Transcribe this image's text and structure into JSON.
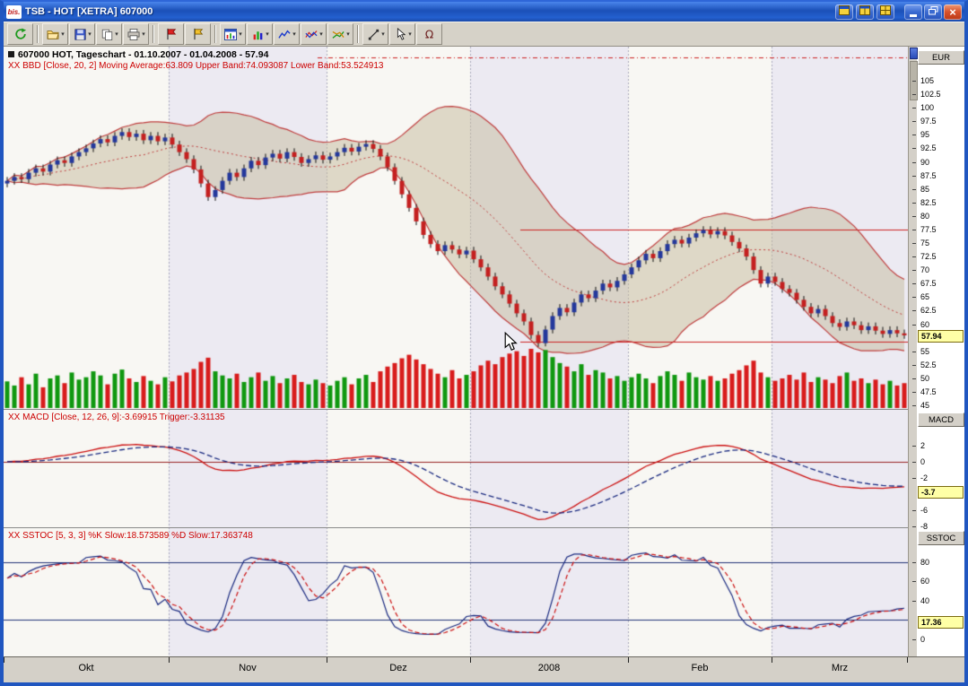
{
  "window": {
    "title": "TSB - HOT [XETRA] 607000",
    "app_icon_text": "bis."
  },
  "toolbar": {
    "items": [
      {
        "name": "refresh",
        "dropdown": false
      },
      {
        "separator": true
      },
      {
        "name": "open",
        "dropdown": true
      },
      {
        "name": "save",
        "dropdown": true
      },
      {
        "name": "copy",
        "dropdown": true
      },
      {
        "name": "print",
        "dropdown": true
      },
      {
        "separator": true
      },
      {
        "name": "flag-red",
        "dropdown": false
      },
      {
        "name": "flag-yellow",
        "dropdown": false
      },
      {
        "separator": true
      },
      {
        "name": "chart-window",
        "dropdown": true
      },
      {
        "name": "indicators",
        "dropdown": true
      },
      {
        "name": "chart-type",
        "dropdown": true
      },
      {
        "name": "overlay",
        "dropdown": true
      },
      {
        "name": "compare",
        "dropdown": true
      },
      {
        "separator": true
      },
      {
        "name": "draw-line",
        "dropdown": true
      },
      {
        "name": "pointer",
        "dropdown": true
      },
      {
        "name": "omega",
        "dropdown": false
      }
    ]
  },
  "chart": {
    "title_line": "607000  HOT, Tageschart - 01.10.2007 - 01.04.2008 - 57.94",
    "bbd_line": "XX BBD [Close, 20, 2] Moving Average:63.809 Upper Band:74.093087 Lower Band:53.524913",
    "macd_line": "XX MACD [Close, 12, 26, 9]:-3.69915 Trigger:-3.31135",
    "sstoc_line": "XX SSTOC [5, 3, 3] %K Slow:18.573589 %D Slow:17.363748",
    "axis": {
      "price_unit": "EUR",
      "price_ticks": [
        105,
        102.5,
        100,
        97.5,
        95,
        92.5,
        90,
        87.5,
        85,
        82.5,
        80,
        77.5,
        75,
        72.5,
        70,
        67.5,
        65,
        62.5,
        60,
        55,
        52.5,
        50,
        47.5,
        45
      ],
      "price_badge": "57.94",
      "macd_unit": "MACD",
      "macd_ticks": [
        2,
        0,
        -2,
        -6,
        -8
      ],
      "macd_badge": "-3.7",
      "stoch_unit": "SSTOC",
      "stoch_ticks": [
        80,
        60,
        40,
        0
      ],
      "stoch_badge": "17.36"
    },
    "months": {
      "labels": [
        "Okt",
        "Nov",
        "Dez",
        "2008",
        "Feb",
        "Mrz"
      ],
      "boundaries": [
        0,
        23,
        45,
        65,
        87,
        107,
        126
      ]
    }
  },
  "colors": {
    "indicator_text": "#cc0000",
    "candle_up": "#24389c",
    "candle_down": "#c42020",
    "band_fill": "rgba(196,186,156,0.5)",
    "band_line": "#c04040",
    "volume_up": "#109810",
    "volume_down": "#d81c1c",
    "macd_line": "#cc1111",
    "trigger_line": "#1a2a80",
    "stoch_k": "#1a2a80",
    "stoch_d": "#cc1111",
    "badge_bg": "#ffffa6",
    "stripe_a": "#f8f7f3",
    "stripe_b": "#eceaf2"
  },
  "chart_data": [
    {
      "type": "candlestick",
      "name": "price",
      "title": "607000 HOT Tageschart 01.10.2007 - 01.04.2008",
      "unit": "EUR",
      "ylim": [
        45,
        105
      ],
      "last": 57.94,
      "indicator": "BBD [Close, 20, 2]",
      "moving_average": 63.809,
      "upper_band": 74.093087,
      "lower_band": 53.524913,
      "hlines": [
        {
          "value": 77.5,
          "from_index": 72
        },
        {
          "value": 56.8,
          "from_index": 72
        }
      ],
      "candles": [
        [
          86.0,
          87.2,
          85.3,
          86.5
        ],
        [
          86.5,
          87.9,
          85.8,
          87.2
        ],
        [
          87.2,
          87.9,
          86.1,
          86.8
        ],
        [
          86.8,
          88.7,
          86.1,
          88.0
        ],
        [
          88.0,
          89.5,
          87.3,
          88.8
        ],
        [
          88.8,
          89.5,
          87.5,
          88.2
        ],
        [
          88.2,
          90.2,
          87.5,
          89.5
        ],
        [
          89.5,
          91.0,
          88.8,
          90.3
        ],
        [
          90.3,
          91.0,
          89.1,
          89.8
        ],
        [
          89.8,
          91.7,
          89.1,
          91.0
        ],
        [
          91.0,
          92.5,
          90.3,
          91.8
        ],
        [
          91.8,
          93.2,
          91.1,
          92.5
        ],
        [
          92.5,
          94.1,
          91.8,
          93.4
        ],
        [
          93.4,
          94.9,
          92.7,
          94.2
        ],
        [
          94.2,
          94.9,
          92.9,
          93.6
        ],
        [
          93.6,
          95.5,
          92.9,
          94.8
        ],
        [
          94.8,
          96.2,
          94.1,
          95.5
        ],
        [
          95.5,
          96.2,
          93.9,
          94.6
        ],
        [
          94.6,
          95.9,
          93.9,
          95.2
        ],
        [
          95.2,
          95.9,
          93.3,
          94.0
        ],
        [
          94.0,
          95.5,
          93.3,
          94.8
        ],
        [
          94.8,
          95.5,
          93.1,
          93.8
        ],
        [
          93.8,
          95.2,
          93.1,
          94.5
        ],
        [
          94.5,
          95.2,
          92.5,
          93.2
        ],
        [
          93.2,
          93.9,
          91.1,
          91.8
        ],
        [
          91.8,
          92.5,
          89.8,
          90.5
        ],
        [
          90.5,
          91.2,
          87.9,
          88.6
        ],
        [
          88.6,
          89.3,
          85.3,
          86.0
        ],
        [
          86.0,
          86.7,
          82.8,
          83.5
        ],
        [
          83.5,
          85.5,
          82.8,
          84.8
        ],
        [
          84.8,
          87.2,
          84.1,
          86.5
        ],
        [
          86.5,
          88.7,
          85.8,
          88.0
        ],
        [
          88.0,
          88.7,
          86.5,
          87.2
        ],
        [
          87.2,
          89.5,
          86.5,
          88.8
        ],
        [
          88.8,
          90.9,
          88.1,
          90.2
        ],
        [
          90.2,
          90.9,
          88.7,
          89.4
        ],
        [
          89.4,
          91.5,
          88.7,
          90.8
        ],
        [
          90.8,
          92.2,
          90.1,
          91.5
        ],
        [
          91.5,
          92.2,
          89.9,
          90.6
        ],
        [
          90.6,
          92.5,
          89.9,
          91.8
        ],
        [
          91.8,
          92.5,
          90.2,
          90.9
        ],
        [
          90.9,
          91.6,
          89.1,
          89.8
        ],
        [
          89.8,
          91.2,
          89.1,
          90.5
        ],
        [
          90.5,
          91.9,
          89.8,
          91.2
        ],
        [
          91.2,
          91.9,
          89.7,
          90.4
        ],
        [
          90.4,
          91.7,
          89.7,
          91.0
        ],
        [
          91.0,
          92.5,
          90.3,
          91.8
        ],
        [
          91.8,
          93.3,
          91.1,
          92.6
        ],
        [
          92.6,
          93.3,
          91.2,
          91.9
        ],
        [
          91.9,
          93.5,
          91.2,
          92.8
        ],
        [
          92.8,
          94.0,
          92.1,
          93.3
        ],
        [
          93.3,
          94.0,
          91.7,
          92.4
        ],
        [
          92.4,
          93.1,
          90.3,
          91.0
        ],
        [
          91.0,
          91.7,
          88.3,
          89.0
        ],
        [
          89.0,
          89.7,
          85.8,
          86.5
        ],
        [
          86.5,
          87.2,
          83.3,
          84.0
        ],
        [
          84.0,
          84.7,
          80.8,
          81.5
        ],
        [
          81.5,
          82.2,
          78.3,
          79.0
        ],
        [
          79.0,
          79.7,
          75.8,
          76.5
        ],
        [
          76.5,
          77.2,
          74.1,
          74.8
        ],
        [
          74.8,
          75.5,
          72.8,
          73.5
        ],
        [
          73.5,
          75.3,
          72.8,
          74.6
        ],
        [
          74.6,
          75.3,
          73.1,
          73.8
        ],
        [
          73.8,
          74.5,
          72.2,
          72.9
        ],
        [
          72.9,
          74.3,
          72.2,
          73.6
        ],
        [
          73.6,
          74.3,
          71.3,
          72.0
        ],
        [
          72.0,
          72.7,
          69.8,
          70.5
        ],
        [
          70.5,
          71.2,
          68.1,
          68.8
        ],
        [
          68.8,
          69.5,
          66.3,
          67.0
        ],
        [
          67.0,
          67.7,
          64.8,
          65.5
        ],
        [
          65.5,
          66.2,
          63.1,
          63.8
        ],
        [
          63.8,
          64.5,
          61.3,
          62.0
        ],
        [
          62.0,
          62.7,
          59.8,
          60.5
        ],
        [
          60.5,
          61.2,
          57.3,
          58.0
        ],
        [
          58.0,
          58.7,
          55.8,
          56.5
        ],
        [
          56.5,
          59.7,
          55.9,
          59.0
        ],
        [
          59.0,
          62.2,
          58.3,
          61.5
        ],
        [
          61.5,
          63.7,
          60.8,
          63.0
        ],
        [
          63.0,
          63.7,
          61.5,
          62.2
        ],
        [
          62.2,
          64.7,
          61.5,
          64.0
        ],
        [
          64.0,
          66.2,
          63.3,
          65.5
        ],
        [
          65.5,
          66.2,
          64.1,
          64.8
        ],
        [
          64.8,
          66.9,
          64.1,
          66.2
        ],
        [
          66.2,
          68.2,
          65.5,
          67.5
        ],
        [
          67.5,
          68.2,
          66.1,
          66.8
        ],
        [
          66.8,
          68.7,
          66.1,
          68.0
        ],
        [
          68.0,
          69.9,
          67.3,
          69.2
        ],
        [
          69.2,
          71.2,
          68.5,
          70.5
        ],
        [
          70.5,
          72.5,
          69.8,
          71.8
        ],
        [
          71.8,
          73.7,
          71.1,
          73.0
        ],
        [
          73.0,
          73.7,
          71.5,
          72.2
        ],
        [
          72.2,
          74.2,
          71.5,
          73.5
        ],
        [
          73.5,
          75.5,
          72.8,
          74.8
        ],
        [
          74.8,
          76.3,
          74.1,
          75.6
        ],
        [
          75.6,
          76.3,
          74.2,
          74.9
        ],
        [
          74.9,
          76.7,
          74.2,
          76.0
        ],
        [
          76.0,
          77.5,
          75.3,
          76.8
        ],
        [
          76.8,
          78.1,
          76.1,
          77.4
        ],
        [
          77.4,
          78.1,
          75.9,
          76.6
        ],
        [
          76.6,
          77.9,
          75.9,
          77.2
        ],
        [
          77.2,
          77.9,
          75.7,
          76.4
        ],
        [
          76.4,
          77.1,
          74.5,
          75.2
        ],
        [
          75.2,
          75.9,
          73.3,
          74.0
        ],
        [
          74.0,
          74.7,
          71.8,
          72.5
        ],
        [
          72.5,
          73.2,
          69.3,
          70.0
        ],
        [
          70.0,
          70.7,
          66.8,
          67.5
        ],
        [
          67.5,
          69.5,
          66.8,
          68.8
        ],
        [
          68.8,
          69.5,
          67.1,
          67.8
        ],
        [
          67.8,
          68.5,
          65.8,
          66.5
        ],
        [
          66.5,
          67.2,
          65.1,
          65.8
        ],
        [
          65.8,
          66.5,
          63.8,
          64.5
        ],
        [
          64.5,
          65.2,
          62.5,
          63.2
        ],
        [
          63.2,
          63.9,
          61.3,
          62.0
        ],
        [
          62.0,
          63.5,
          61.3,
          62.8
        ],
        [
          62.8,
          63.5,
          60.8,
          61.5
        ],
        [
          61.5,
          62.2,
          59.5,
          60.2
        ],
        [
          60.2,
          60.9,
          58.8,
          59.5
        ],
        [
          59.5,
          61.2,
          58.8,
          60.5
        ],
        [
          60.5,
          61.2,
          59.1,
          59.8
        ],
        [
          59.8,
          60.5,
          58.2,
          58.9
        ],
        [
          58.9,
          60.3,
          58.2,
          59.6
        ],
        [
          59.6,
          60.3,
          58.1,
          58.8
        ],
        [
          58.8,
          59.5,
          57.5,
          58.2
        ],
        [
          58.2,
          59.6,
          57.5,
          58.9
        ],
        [
          58.9,
          59.6,
          57.6,
          58.3
        ],
        [
          58.3,
          59.0,
          57.3,
          57.94
        ]
      ]
    },
    {
      "type": "bar",
      "name": "volume",
      "values": [
        45,
        38,
        52,
        40,
        58,
        35,
        50,
        55,
        42,
        60,
        48,
        52,
        62,
        55,
        40,
        58,
        65,
        50,
        44,
        54,
        46,
        40,
        52,
        45,
        55,
        60,
        66,
        78,
        85,
        62,
        55,
        50,
        58,
        44,
        52,
        60,
        46,
        54,
        42,
        50,
        56,
        44,
        40,
        48,
        42,
        38,
        46,
        52,
        40,
        50,
        56,
        44,
        62,
        70,
        76,
        84,
        90,
        82,
        74,
        66,
        58,
        52,
        64,
        50,
        56,
        62,
        72,
        80,
        74,
        86,
        92,
        96,
        88,
        100,
        94,
        98,
        86,
        76,
        70,
        62,
        74,
        56,
        64,
        60,
        50,
        54,
        46,
        52,
        58,
        50,
        42,
        54,
        62,
        56,
        46,
        60,
        52,
        48,
        54,
        46,
        50,
        58,
        64,
        72,
        80,
        60,
        52,
        46,
        50,
        56,
        48,
        60,
        44,
        52,
        48,
        42,
        54,
        60,
        46,
        50,
        42,
        48,
        40,
        46,
        38,
        42
      ]
    },
    {
      "type": "line",
      "name": "MACD",
      "params": [
        12,
        26,
        9
      ],
      "value": -3.69915,
      "trigger": -3.31135,
      "ylim": [
        -8.5,
        3
      ]
    },
    {
      "type": "line",
      "name": "SSTOC",
      "params": [
        5,
        3,
        3
      ],
      "k_slow": 18.573589,
      "d_slow": 17.363748,
      "ylim": [
        0,
        100
      ],
      "hlines": [
        80,
        20
      ]
    }
  ]
}
